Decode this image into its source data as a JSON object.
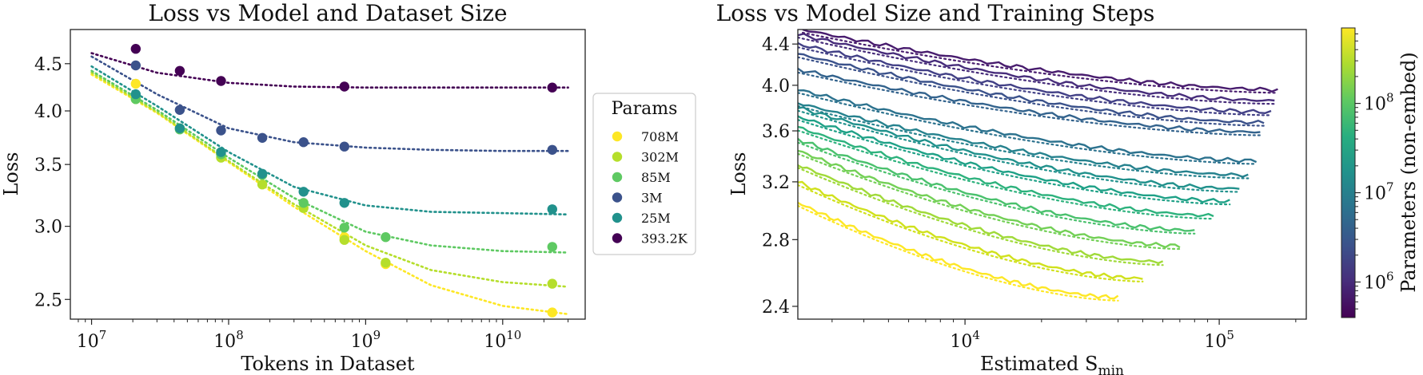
{
  "chart_data": [
    {
      "type": "scatter",
      "title": "Loss vs Model and Dataset Size",
      "xlabel": "Tokens in Dataset",
      "ylabel": "Loss",
      "xscale": "log",
      "yscale": "log",
      "xlim": [
        7000000,
        40000000000
      ],
      "ylim": [
        2.38,
        4.9
      ],
      "x_ticks": [
        {
          "value": 10000000,
          "base": "10",
          "exp": "7"
        },
        {
          "value": 100000000,
          "base": "10",
          "exp": "8"
        },
        {
          "value": 1000000000,
          "base": "10",
          "exp": "9"
        },
        {
          "value": 10000000000,
          "base": "10",
          "exp": "10"
        }
      ],
      "y_ticks": [
        {
          "value": 2.5,
          "label": "2.5"
        },
        {
          "value": 3.0,
          "label": "3.0"
        },
        {
          "value": 3.5,
          "label": "3.5"
        },
        {
          "value": 4.0,
          "label": "4.0"
        },
        {
          "value": 4.5,
          "label": "4.5"
        }
      ],
      "legend_title": "Params",
      "legend_placement": "outside-right",
      "series": [
        {
          "name": "708M",
          "color": "#fde725",
          "points": [
            [
              21000000,
              4.28
            ],
            [
              700000000,
              2.92
            ],
            [
              1400000000,
              2.73
            ],
            [
              23000000000,
              2.42
            ]
          ],
          "fit": [
            [
              10000000,
              4.38
            ],
            [
              30000000,
              3.98
            ],
            [
              100000000,
              3.52
            ],
            [
              300000000,
              3.15
            ],
            [
              1000000000,
              2.82
            ],
            [
              3000000000,
              2.59
            ],
            [
              10000000000,
              2.46
            ],
            [
              30000000000,
              2.41
            ]
          ]
        },
        {
          "name": "302M",
          "color": "#b5de2b",
          "points": [
            [
              21000000,
              4.12
            ],
            [
              44000000,
              3.83
            ],
            [
              88000000,
              3.56
            ],
            [
              176000000,
              3.33
            ],
            [
              352000000,
              3.14
            ],
            [
              700000000,
              2.9
            ],
            [
              1400000000,
              2.74
            ],
            [
              23000000000,
              2.6
            ]
          ],
          "fit": [
            [
              10000000,
              4.4
            ],
            [
              30000000,
              3.99
            ],
            [
              100000000,
              3.53
            ],
            [
              300000000,
              3.17
            ],
            [
              1000000000,
              2.86
            ],
            [
              3000000000,
              2.69
            ],
            [
              10000000000,
              2.61
            ],
            [
              30000000000,
              2.58
            ]
          ]
        },
        {
          "name": "85M",
          "color": "#5ec962",
          "points": [
            [
              21000000,
              4.12
            ],
            [
              44000000,
              3.82
            ],
            [
              88000000,
              3.59
            ],
            [
              176000000,
              3.41
            ],
            [
              352000000,
              3.18
            ],
            [
              700000000,
              2.99
            ],
            [
              1400000000,
              2.92
            ],
            [
              23000000000,
              2.85
            ]
          ],
          "fit": [
            [
              10000000,
              4.42
            ],
            [
              30000000,
              4.01
            ],
            [
              100000000,
              3.56
            ],
            [
              300000000,
              3.22
            ],
            [
              1000000000,
              2.96
            ],
            [
              3000000000,
              2.86
            ],
            [
              10000000000,
              2.82
            ],
            [
              30000000000,
              2.81
            ]
          ]
        },
        {
          "name": "3M",
          "color": "#3b528b",
          "points": [
            [
              21000000,
              4.48
            ],
            [
              44000000,
              4.01
            ],
            [
              88000000,
              3.81
            ],
            [
              176000000,
              3.74
            ],
            [
              352000000,
              3.7
            ],
            [
              700000000,
              3.66
            ],
            [
              23000000000,
              3.63
            ]
          ],
          "fit": [
            [
              10000000,
              4.58
            ],
            [
              30000000,
              4.17
            ],
            [
              100000000,
              3.83
            ],
            [
              300000000,
              3.7
            ],
            [
              1000000000,
              3.65
            ],
            [
              3000000000,
              3.63
            ],
            [
              10000000000,
              3.62
            ],
            [
              30000000000,
              3.62
            ]
          ]
        },
        {
          "name": "25M",
          "color": "#21918c",
          "points": [
            [
              21000000,
              4.17
            ],
            [
              44000000,
              3.83
            ],
            [
              88000000,
              3.61
            ],
            [
              176000000,
              3.42
            ],
            [
              352000000,
              3.27
            ],
            [
              700000000,
              3.18
            ],
            [
              23000000000,
              3.13
            ]
          ],
          "fit": [
            [
              10000000,
              4.47
            ],
            [
              30000000,
              4.05
            ],
            [
              100000000,
              3.61
            ],
            [
              300000000,
              3.31
            ],
            [
              1000000000,
              3.16
            ],
            [
              3000000000,
              3.11
            ],
            [
              10000000000,
              3.1
            ],
            [
              30000000000,
              3.09
            ]
          ]
        },
        {
          "name": "393.2K",
          "color": "#440154",
          "points": [
            [
              21000000,
              4.67
            ],
            [
              44000000,
              4.42
            ],
            [
              88000000,
              4.31
            ],
            [
              700000000,
              4.25
            ],
            [
              23000000000,
              4.24
            ]
          ],
          "fit": [
            [
              10000000,
              4.62
            ],
            [
              30000000,
              4.4
            ],
            [
              100000000,
              4.29
            ],
            [
              300000000,
              4.25
            ],
            [
              1000000000,
              4.24
            ],
            [
              3000000000,
              4.24
            ],
            [
              10000000000,
              4.24
            ],
            [
              30000000000,
              4.24
            ]
          ]
        }
      ]
    },
    {
      "type": "line",
      "title": "Loss vs Model Size and Training Steps",
      "xlabel": "Estimated S",
      "xlabel_subscript": "min",
      "ylabel": "Loss",
      "xscale": "log",
      "yscale": "log",
      "xlim": [
        2200,
        220000
      ],
      "ylim": [
        2.33,
        4.55
      ],
      "x_ticks": [
        {
          "value": 10000,
          "base": "10",
          "exp": "4"
        },
        {
          "value": 100000,
          "base": "10",
          "exp": "5"
        }
      ],
      "y_ticks": [
        {
          "value": 2.4,
          "label": "2.4"
        },
        {
          "value": 2.8,
          "label": "2.8"
        },
        {
          "value": 3.2,
          "label": "3.2"
        },
        {
          "value": 3.6,
          "label": "3.6"
        },
        {
          "value": 4.0,
          "label": "4.0"
        },
        {
          "value": 4.4,
          "label": "4.4"
        }
      ],
      "solid_and_dotted": "solid = measured, dotted = fit",
      "colorbar": {
        "label": "Parameters (non-embed)",
        "scale": "log",
        "range": [
          400000,
          700000000
        ],
        "ticks": [
          {
            "value": 1000000,
            "base": "10",
            "exp": "6"
          },
          {
            "value": 10000000,
            "base": "10",
            "exp": "7"
          },
          {
            "value": 100000000,
            "base": "10",
            "exp": "8"
          }
        ]
      },
      "curves": [
        {
          "color": "#fde725",
          "x_start": 2200,
          "x_end": 40000,
          "y_start": 3.05,
          "y_end": 2.45
        },
        {
          "color": "#d0e11c",
          "x_start": 2200,
          "x_end": 50000,
          "y_start": 3.2,
          "y_end": 2.56
        },
        {
          "color": "#a0da39",
          "x_start": 2200,
          "x_end": 60000,
          "y_start": 3.33,
          "y_end": 2.66
        },
        {
          "color": "#73d056",
          "x_start": 2200,
          "x_end": 70000,
          "y_start": 3.44,
          "y_end": 2.76
        },
        {
          "color": "#4ac16d",
          "x_start": 2200,
          "x_end": 80000,
          "y_start": 3.53,
          "y_end": 2.86
        },
        {
          "color": "#2db27d",
          "x_start": 2200,
          "x_end": 95000,
          "y_start": 3.63,
          "y_end": 2.96
        },
        {
          "color": "#1fa187",
          "x_start": 2200,
          "x_end": 110000,
          "y_start": 3.72,
          "y_end": 3.06
        },
        {
          "color": "#21918c",
          "x_start": 2200,
          "x_end": 120000,
          "y_start": 3.8,
          "y_end": 3.15
        },
        {
          "color": "#26828e",
          "x_start": 2200,
          "x_end": 130000,
          "y_start": 3.84,
          "y_end": 3.25
        },
        {
          "color": "#2c728e",
          "x_start": 2200,
          "x_end": 140000,
          "y_start": 3.96,
          "y_end": 3.36
        },
        {
          "color": "#33638d",
          "x_start": 2200,
          "x_end": 145000,
          "y_start": 4.15,
          "y_end": 3.59
        },
        {
          "color": "#3b528b",
          "x_start": 2200,
          "x_end": 150000,
          "y_start": 4.3,
          "y_end": 3.67
        },
        {
          "color": "#424086",
          "x_start": 2200,
          "x_end": 160000,
          "y_start": 4.4,
          "y_end": 3.76
        },
        {
          "color": "#472d7b",
          "x_start": 2200,
          "x_end": 165000,
          "y_start": 4.5,
          "y_end": 3.86
        },
        {
          "color": "#481c6e",
          "x_start": 2300,
          "x_end": 170000,
          "y_start": 4.55,
          "y_end": 3.96
        }
      ]
    }
  ]
}
